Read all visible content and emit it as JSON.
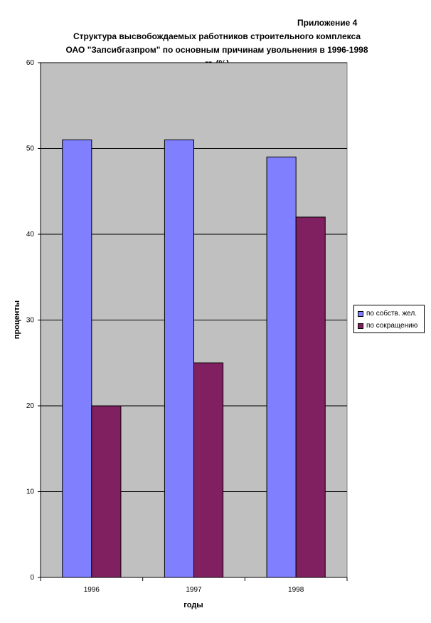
{
  "chart_data": {
    "type": "bar",
    "appendix": "Приложение 4",
    "title_lines": [
      "Структура высвобождаемых работников строительного комплекса",
      "ОАО \"Запсибгазпром\" по основным причинам увольнения в 1996-1998",
      "гг. (%)"
    ],
    "categories": [
      "1996",
      "1997",
      "1998"
    ],
    "series": [
      {
        "name": "по собств. жел.",
        "values": [
          51,
          51,
          49
        ],
        "color": "#8080ff"
      },
      {
        "name": "по сокращению",
        "values": [
          20,
          25,
          42
        ],
        "color": "#802060"
      }
    ],
    "xlabel": "годы",
    "ylabel": "проценты",
    "ylim": [
      0,
      60
    ],
    "yticks": [
      0,
      10,
      20,
      30,
      40,
      50,
      60
    ],
    "grid": true,
    "plot_background": "#c0c0c0",
    "legend_position": "right"
  }
}
